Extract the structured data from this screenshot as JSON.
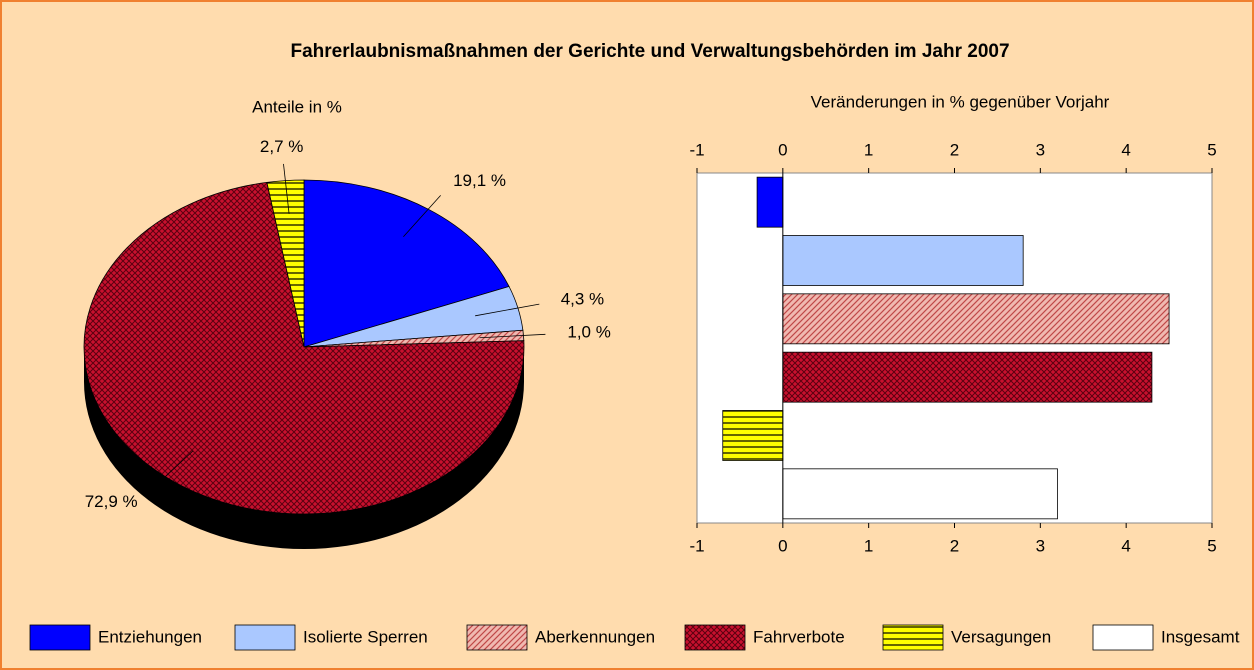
{
  "title": "Fahrerlaubnismaßnahmen der Gerichte und Verwaltungsbehörden im Jahr 2007",
  "chart_data": [
    {
      "type": "pie",
      "subtitle": "Anteile in %",
      "values": [
        19.1,
        4.3,
        1.0,
        72.9,
        2.7
      ],
      "value_labels": [
        "19,1 %",
        "4,3 %",
        "1,0 %",
        "72,9 %",
        "2,7 %"
      ],
      "colors": [
        "#0000ff",
        "#aac8ff",
        "#f0b8b0",
        "#c8102e",
        "#ffff00"
      ],
      "fill_patterns": [
        "solid",
        "solid",
        "dots",
        "crosshatch",
        "hstripes"
      ]
    },
    {
      "type": "bar",
      "orientation": "horizontal",
      "subtitle": "Veränderungen in % gegenüber Vorjahr",
      "categories": [
        "Entziehungen",
        "Isolierte Sperren",
        "Aberkennungen",
        "Fahrverbote",
        "Versagungen",
        "Insgesamt"
      ],
      "values": [
        -0.3,
        2.8,
        4.5,
        4.3,
        -0.7,
        3.2
      ],
      "colors": [
        "#0000ff",
        "#aac8ff",
        "#f0b8b0",
        "#c8102e",
        "#ffff00",
        "#ffffff"
      ],
      "fill_patterns": [
        "solid",
        "solid",
        "dots",
        "crosshatch",
        "hstripes",
        "solid"
      ],
      "xlim": [
        -1,
        5
      ],
      "xticks": [
        -1,
        0,
        1,
        2,
        3,
        4,
        5
      ],
      "grid": false,
      "legend": "bottom"
    }
  ]
}
